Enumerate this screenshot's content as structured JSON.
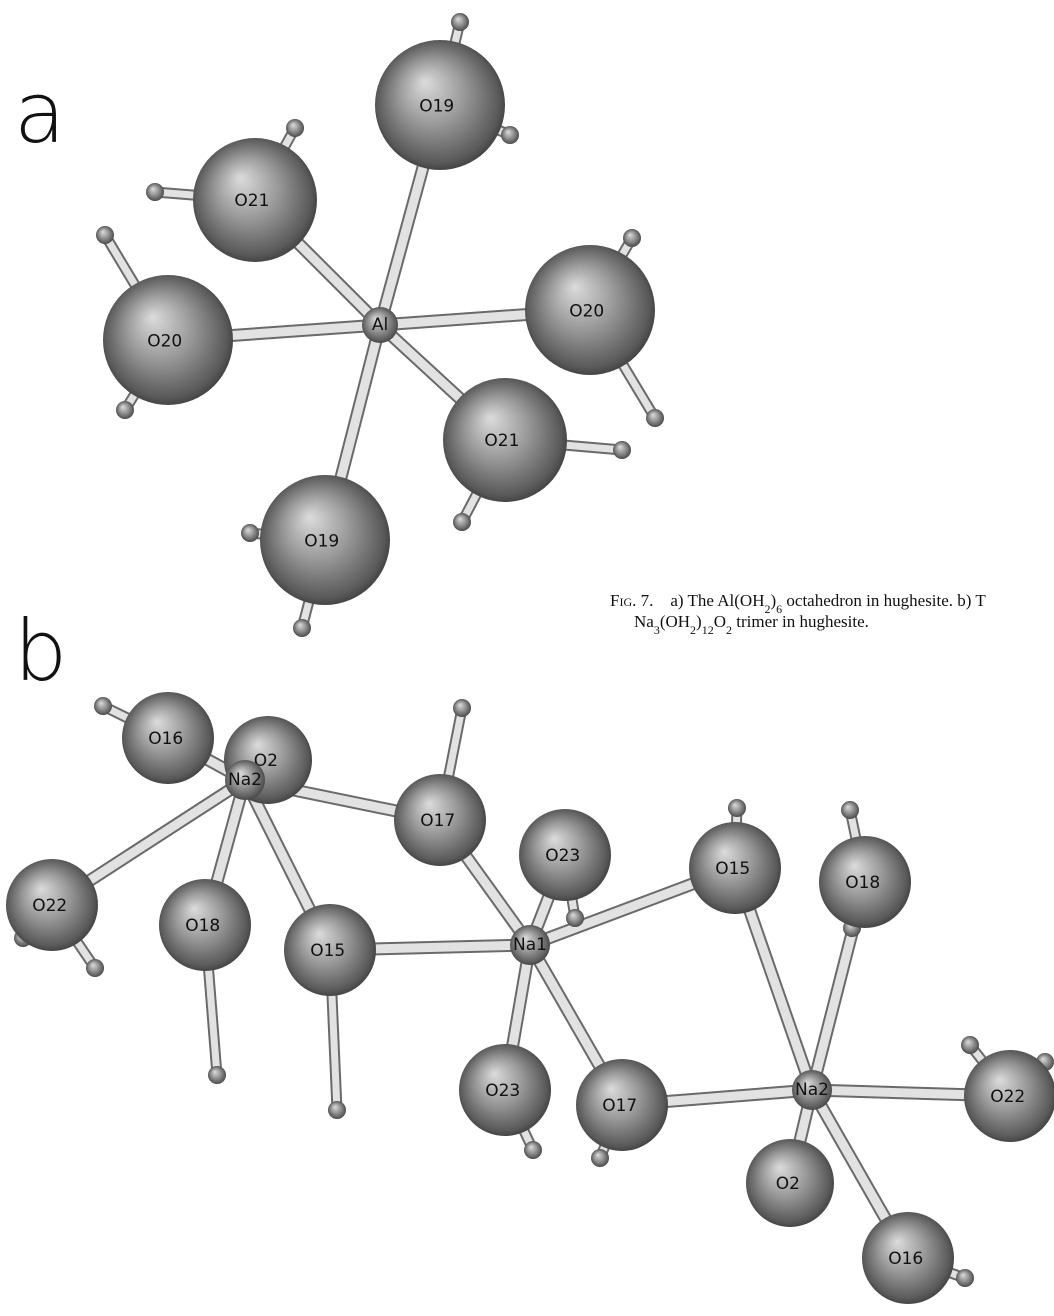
{
  "panels": [
    {
      "label": "a",
      "atoms": [
        "Al",
        "O19",
        "O21",
        "O20",
        "O20",
        "O21",
        "O19"
      ]
    },
    {
      "label": "b",
      "atoms": [
        "Na2",
        "O16",
        "O2",
        "O22",
        "O17",
        "O23",
        "Na1",
        "O18",
        "O15",
        "O15",
        "O18",
        "O23",
        "O17",
        "Na2",
        "O22",
        "O2",
        "O16"
      ]
    }
  ],
  "caption": {
    "lines": [
      [
        {
          "text": "Fig. 7."
        },
        {
          "text": "    a) The Al(OH"
        },
        {
          "text": "2",
          "sub": true
        },
        {
          "text": ")"
        },
        {
          "text": "6",
          "sub": true
        },
        {
          "text": " octahedron in hughesite. b) T"
        }
      ],
      [
        {
          "text": "Na"
        },
        {
          "text": "3",
          "sub": true
        },
        {
          "text": "(OH"
        },
        {
          "text": "2",
          "sub": true
        },
        {
          "text": ")"
        },
        {
          "text": "12",
          "sub": true
        },
        {
          "text": "O"
        },
        {
          "text": "2",
          "sub": true
        },
        {
          "text": " trimer in hughesite."
        }
      ]
    ]
  }
}
